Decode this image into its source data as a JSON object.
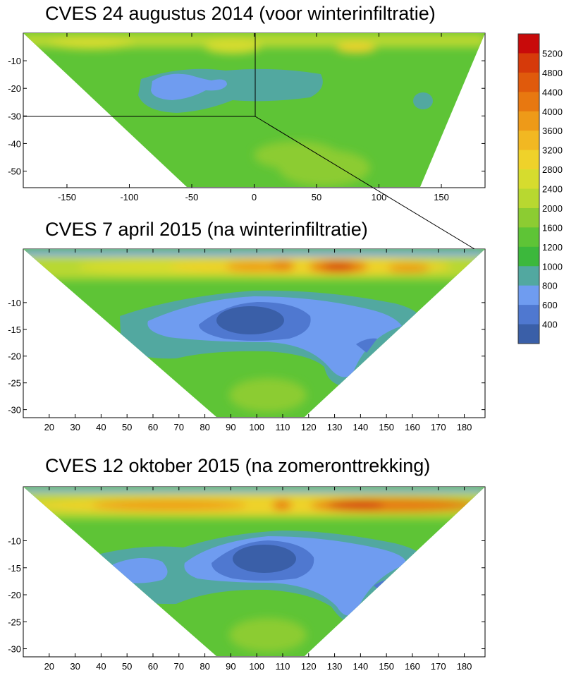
{
  "chart_data": [
    {
      "type": "heatmap",
      "title": "CVES 24 augustus 2014 (voor winterinfiltratie)",
      "xlim": [
        -185,
        185
      ],
      "ylim": [
        -56,
        0
      ],
      "x_ticks": [
        -150,
        -100,
        -50,
        0,
        50,
        100,
        150
      ],
      "y_ticks": [
        -10,
        -20,
        -30,
        -40,
        -50
      ],
      "zoom_box": {
        "x": [
          -185,
          0
        ],
        "y": [
          -30,
          0
        ]
      }
    },
    {
      "type": "heatmap",
      "title": "CVES 7 april 2015 (na winterinfiltratie)",
      "xlim": [
        10,
        188
      ],
      "ylim": [
        -31.5,
        0
      ],
      "x_ticks": [
        20,
        30,
        40,
        50,
        60,
        70,
        80,
        90,
        100,
        110,
        120,
        130,
        140,
        150,
        160,
        170,
        180
      ],
      "y_ticks": [
        -10,
        -15,
        -20,
        -25,
        -30
      ]
    },
    {
      "type": "heatmap",
      "title": "CVES 12 oktober 2015 (na zomeronttrekking)",
      "xlim": [
        10,
        188
      ],
      "ylim": [
        -31.5,
        0
      ],
      "x_ticks": [
        20,
        30,
        40,
        50,
        60,
        70,
        80,
        90,
        100,
        110,
        120,
        130,
        140,
        150,
        160,
        170,
        180
      ],
      "y_ticks": [
        -10,
        -15,
        -20,
        -25,
        -30
      ]
    }
  ],
  "colorbar": {
    "labels": [
      "5200",
      "4800",
      "4400",
      "4000",
      "3600",
      "3200",
      "2800",
      "2400",
      "2000",
      "1600",
      "1200",
      "1000",
      "800",
      "600",
      "400"
    ],
    "colors": [
      "#c80a0a",
      "#d63a0a",
      "#e05a0c",
      "#e87810",
      "#ee9a18",
      "#f2b822",
      "#efd22a",
      "#d6dc2e",
      "#b8d830",
      "#8ccc32",
      "#5ec436",
      "#3cb83c",
      "#52a8a0",
      "#6f9cf0",
      "#4f78d0",
      "#3a5fa8"
    ]
  }
}
